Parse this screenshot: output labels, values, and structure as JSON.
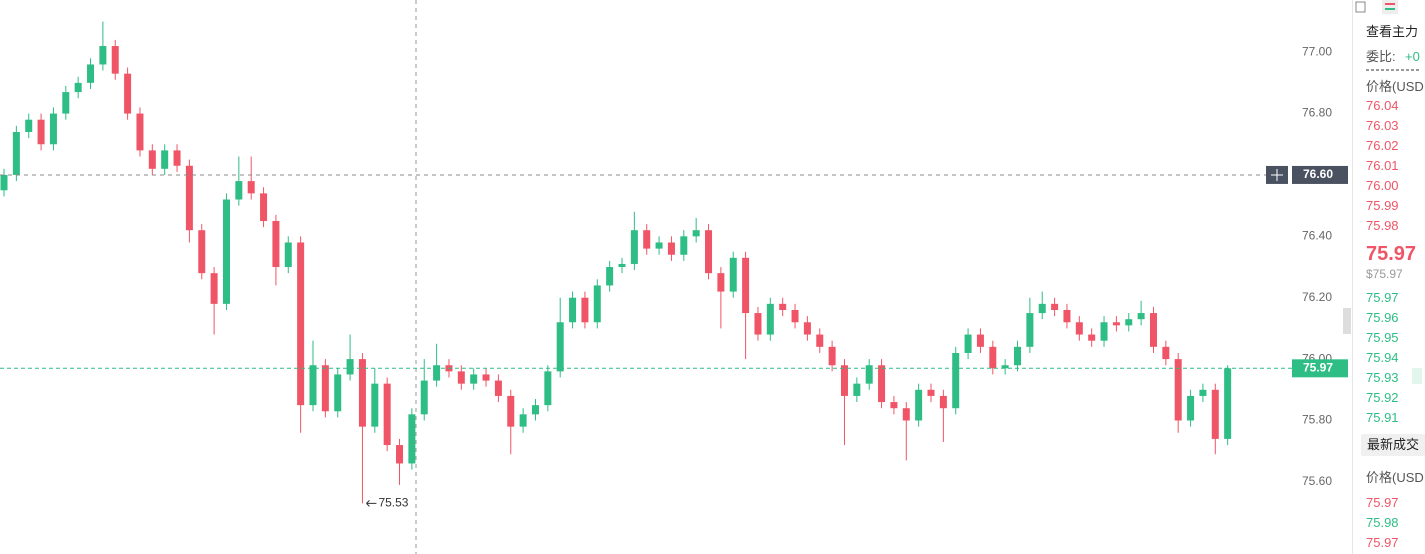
{
  "chart_data": {
    "type": "candlestick",
    "open": [
      76.55,
      76.6,
      76.74,
      76.78,
      76.7,
      76.8,
      76.87,
      76.9,
      76.96,
      77.02,
      76.93,
      76.8,
      76.68,
      76.62,
      76.68,
      76.63,
      76.42,
      76.28,
      76.18,
      76.52,
      76.58,
      76.54,
      76.45,
      76.3,
      76.38,
      75.85,
      75.98,
      75.83,
      75.95,
      76.0,
      75.78,
      75.92,
      75.72,
      75.66,
      75.82,
      75.93,
      75.98,
      75.96,
      75.92,
      75.95,
      75.93,
      75.88,
      75.78,
      75.82,
      75.85,
      75.96,
      76.12,
      76.2,
      76.12,
      76.24,
      76.3,
      76.31,
      76.42,
      76.36,
      76.38,
      76.34,
      76.4,
      76.42,
      76.28,
      76.22,
      76.33,
      76.15,
      76.08,
      76.18,
      76.16,
      76.12,
      76.08,
      76.04,
      75.98,
      75.88,
      75.92,
      75.98,
      75.86,
      75.84,
      75.8,
      75.9,
      75.88,
      75.84,
      76.02,
      76.08,
      76.04,
      75.97,
      75.98,
      76.04,
      76.15,
      76.18,
      76.16,
      76.12,
      76.08,
      76.06,
      76.12,
      76.11,
      76.13,
      76.15,
      76.04,
      76.0,
      75.8,
      75.88,
      75.9,
      75.74
    ],
    "high": [
      76.62,
      76.76,
      76.8,
      76.8,
      76.82,
      76.89,
      76.92,
      76.98,
      77.1,
      77.04,
      76.95,
      76.82,
      76.7,
      76.7,
      76.7,
      76.65,
      76.44,
      76.3,
      76.54,
      76.66,
      76.66,
      76.56,
      76.47,
      76.4,
      76.4,
      76.06,
      76.0,
      75.97,
      76.08,
      76.02,
      75.97,
      75.94,
      75.74,
      75.84,
      76.0,
      76.05,
      76.0,
      75.98,
      75.97,
      75.97,
      75.95,
      75.9,
      75.84,
      75.87,
      75.98,
      76.2,
      76.22,
      76.22,
      76.26,
      76.32,
      76.33,
      76.48,
      76.44,
      76.4,
      76.4,
      76.42,
      76.46,
      76.44,
      76.3,
      76.35,
      76.35,
      76.17,
      76.2,
      76.2,
      76.18,
      76.14,
      76.1,
      76.06,
      76.0,
      75.94,
      76.0,
      76.0,
      75.88,
      75.86,
      75.92,
      75.92,
      75.9,
      76.04,
      76.1,
      76.1,
      76.06,
      76.0,
      76.06,
      76.2,
      76.22,
      76.2,
      76.18,
      76.14,
      76.1,
      76.14,
      76.14,
      76.15,
      76.19,
      76.17,
      76.06,
      76.02,
      75.9,
      75.92,
      75.92,
      75.98
    ],
    "low": [
      76.53,
      76.58,
      76.72,
      76.68,
      76.68,
      76.78,
      76.85,
      76.88,
      76.94,
      76.91,
      76.78,
      76.66,
      76.6,
      76.6,
      76.61,
      76.38,
      76.26,
      76.08,
      76.16,
      76.5,
      76.52,
      76.43,
      76.24,
      76.28,
      75.76,
      75.83,
      75.81,
      75.81,
      75.93,
      75.53,
      75.76,
      75.7,
      75.59,
      75.64,
      75.8,
      75.91,
      75.94,
      75.9,
      75.9,
      75.91,
      75.86,
      75.69,
      75.76,
      75.8,
      75.83,
      75.94,
      76.1,
      76.1,
      76.1,
      76.22,
      76.28,
      76.29,
      76.34,
      76.34,
      76.32,
      76.32,
      76.38,
      76.26,
      76.1,
      76.2,
      76.0,
      76.06,
      76.06,
      76.14,
      76.1,
      76.06,
      76.02,
      75.96,
      75.72,
      75.86,
      75.9,
      75.84,
      75.82,
      75.67,
      75.78,
      75.86,
      75.73,
      75.82,
      76.0,
      76.02,
      75.95,
      75.95,
      75.96,
      76.02,
      76.13,
      76.14,
      76.1,
      76.06,
      76.04,
      76.04,
      76.09,
      76.09,
      76.11,
      76.02,
      75.98,
      75.76,
      75.78,
      75.86,
      75.69,
      75.72
    ],
    "close": [
      76.6,
      76.74,
      76.78,
      76.7,
      76.8,
      76.87,
      76.9,
      76.96,
      77.02,
      76.93,
      76.8,
      76.68,
      76.62,
      76.68,
      76.63,
      76.42,
      76.28,
      76.18,
      76.52,
      76.58,
      76.54,
      76.45,
      76.3,
      76.38,
      75.85,
      75.98,
      75.83,
      75.95,
      76.0,
      75.78,
      75.92,
      75.72,
      75.66,
      75.82,
      75.93,
      75.98,
      75.96,
      75.92,
      75.95,
      75.93,
      75.88,
      75.78,
      75.82,
      75.85,
      75.96,
      76.12,
      76.2,
      76.12,
      76.24,
      76.3,
      76.31,
      76.42,
      76.36,
      76.38,
      76.34,
      76.4,
      76.42,
      76.28,
      76.22,
      76.33,
      76.15,
      76.08,
      76.18,
      76.16,
      76.12,
      76.08,
      76.04,
      75.98,
      75.88,
      75.92,
      75.98,
      75.86,
      75.84,
      75.8,
      75.9,
      75.88,
      75.84,
      76.02,
      76.08,
      76.04,
      75.97,
      75.98,
      76.04,
      76.15,
      76.18,
      76.16,
      76.12,
      76.08,
      76.06,
      76.12,
      76.11,
      76.13,
      76.15,
      76.04,
      76.0,
      75.8,
      75.88,
      75.9,
      75.74,
      75.97
    ],
    "up_color": "#2ebd85",
    "down_color": "#ef5566",
    "ylim": [
      75.365,
      77.17
    ],
    "yticks": [
      {
        "value": 75.6,
        "label": "75.60"
      },
      {
        "value": 75.8,
        "label": "75.80"
      },
      {
        "value": 76.0,
        "label": "76.00"
      },
      {
        "value": 76.2,
        "label": "76.20"
      },
      {
        "value": 76.4,
        "label": "76.40"
      },
      {
        "value": 76.6,
        "label": "76.60"
      },
      {
        "value": 76.8,
        "label": "76.80"
      },
      {
        "value": 77.0,
        "label": "77.00"
      }
    ],
    "crosshair": {
      "value": 76.6,
      "label": "76.60"
    }
  },
  "order_book": {
    "title": "查看主力",
    "ratio_label": "委比:",
    "ratio_value": "+0",
    "price_header": "价格(USD",
    "asks": [
      "76.04",
      "76.03",
      "76.02",
      "76.01",
      "76.00",
      "75.99",
      "75.98"
    ],
    "last_price": "75.97",
    "last_price_usd": "$75.97",
    "bids": [
      "75.97",
      "75.96",
      "75.95",
      "75.94",
      "75.93",
      "75.92",
      "75.91"
    ]
  },
  "trades": {
    "button": "最新成交",
    "price_header": "价格(USD",
    "prices": [
      "75.97",
      "75.98",
      "75.97"
    ],
    "colors": [
      "#ef5566",
      "#2ebd85",
      "#ef5566"
    ]
  }
}
